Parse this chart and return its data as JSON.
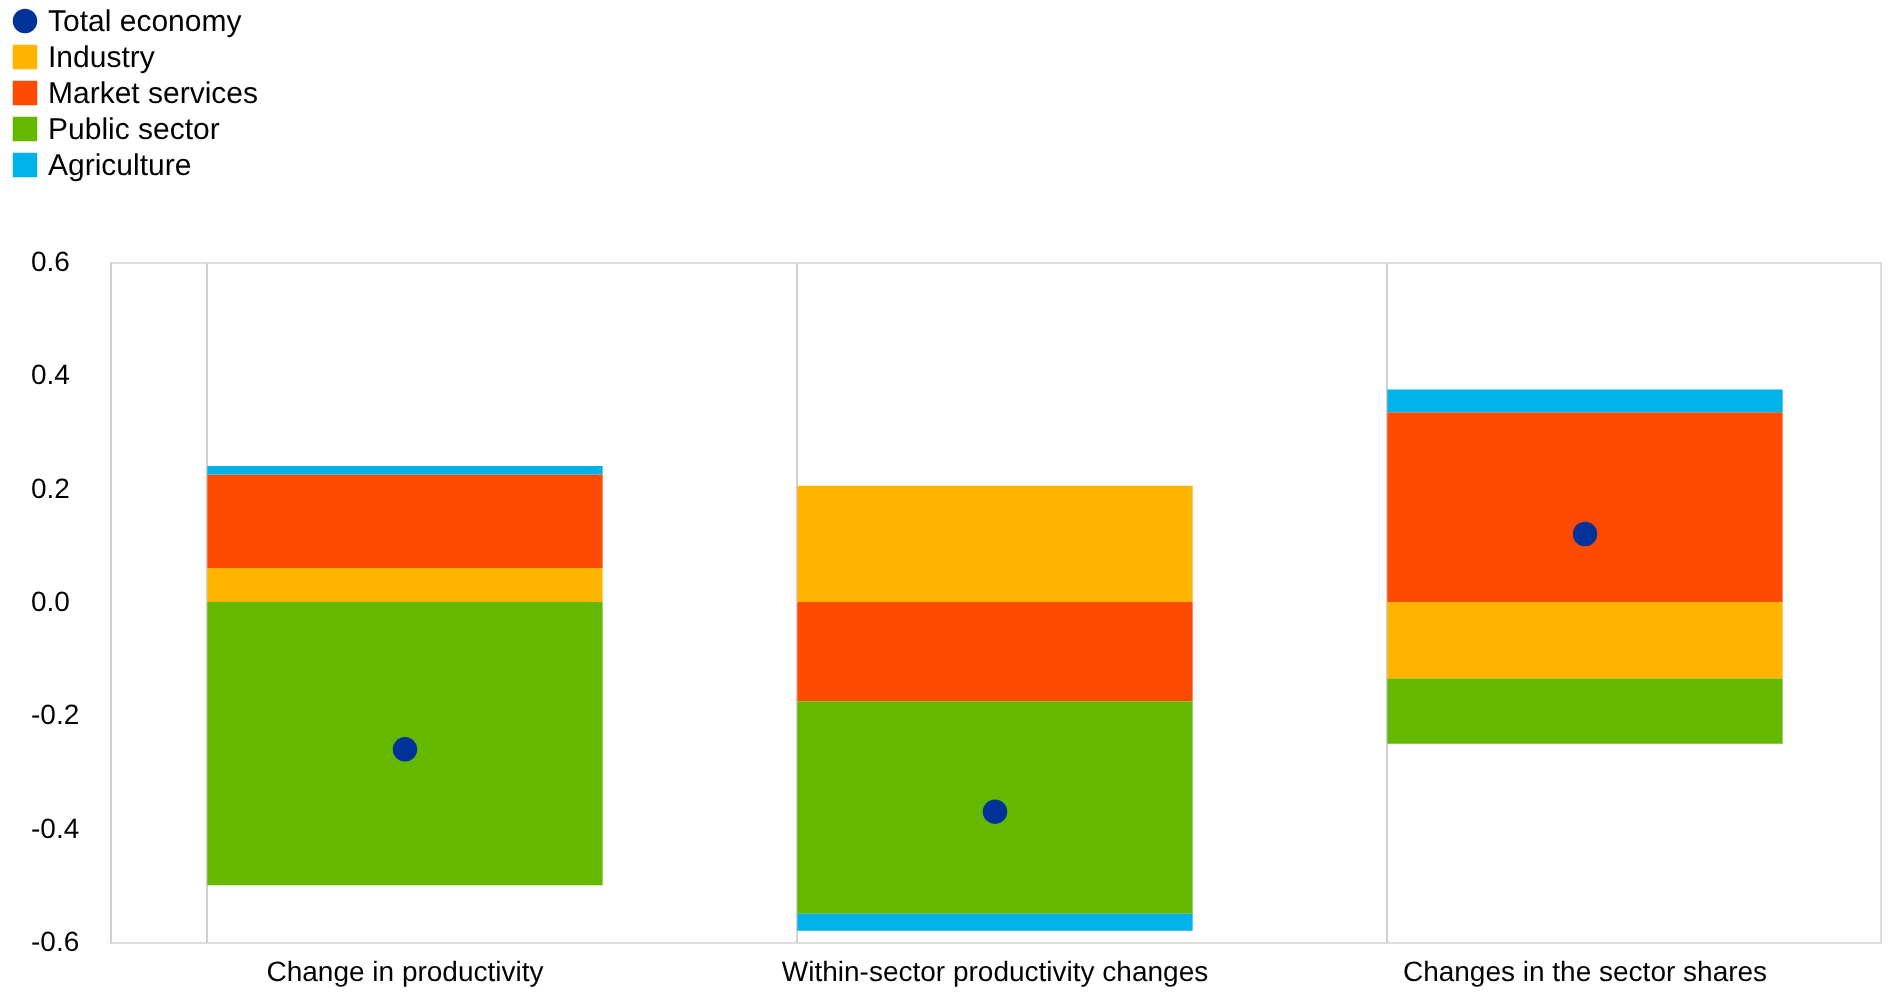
{
  "chart_data": {
    "type": "bar",
    "stacked": true,
    "categories": [
      "Change in productivity",
      "Within-sector productivity changes",
      "Changes in the sector shares"
    ],
    "series": [
      {
        "name": "Total economy",
        "type": "scatter",
        "marker": "circle",
        "color": "#003299",
        "values": [
          -0.26,
          -0.37,
          0.12
        ]
      },
      {
        "name": "Industry",
        "color": "#ffb400",
        "values": [
          0.06,
          0.205,
          -0.135
        ]
      },
      {
        "name": "Market services",
        "color": "#ff4b00",
        "values": [
          0.165,
          -0.175,
          0.335
        ]
      },
      {
        "name": "Public sector",
        "color": "#65b800",
        "values": [
          -0.5,
          -0.375,
          -0.115
        ]
      },
      {
        "name": "Agriculture",
        "color": "#00b1ea",
        "values": [
          0.015,
          -0.03,
          0.04
        ]
      }
    ],
    "ylim": [
      -0.6,
      0.6
    ],
    "yticks": [
      {
        "value": -0.6,
        "label": "-0.6"
      },
      {
        "value": -0.4,
        "label": "-0.4"
      },
      {
        "value": -0.2,
        "label": "-0.2"
      },
      {
        "value": 0,
        "label": "0.0"
      },
      {
        "value": 0.2,
        "label": "0.2"
      },
      {
        "value": 0.4,
        "label": "0.4"
      },
      {
        "value": 0.6,
        "label": "0.6"
      }
    ],
    "grid": "x",
    "legend": "top left"
  }
}
